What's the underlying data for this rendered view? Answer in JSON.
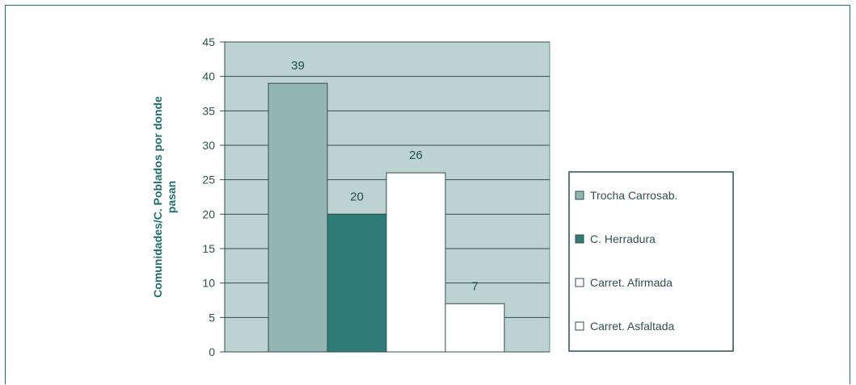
{
  "chart_data": {
    "type": "bar",
    "title": "",
    "xlabel": "",
    "ylabel_lines": [
      "Comunidades/C. Poblados por donde",
      "pasan"
    ],
    "ylim": [
      0,
      45
    ],
    "ytick_step": 5,
    "grid": true,
    "legend_position": "right",
    "plot_background": "#bcd3d1",
    "series": [
      {
        "name": "Trocha Carrosab.",
        "values": [
          39
        ],
        "color": "#93b6b3",
        "label": "39"
      },
      {
        "name": "C. Herradura",
        "values": [
          20
        ],
        "color": "#2f7b77",
        "label": "20"
      },
      {
        "name": "Carret. Afirmada",
        "values": [
          26
        ],
        "color": "#ffffff",
        "label": "26"
      },
      {
        "name": "Carret. Asfaltada",
        "values": [
          7
        ],
        "color": "#ffffff",
        "label": "7"
      }
    ]
  }
}
